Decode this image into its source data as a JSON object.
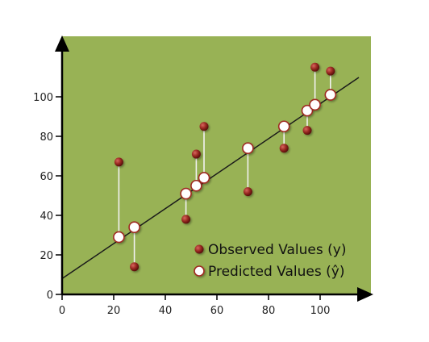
{
  "chart_data": {
    "type": "scatter",
    "title": "",
    "xlabel": "",
    "ylabel": "",
    "xlim": [
      0,
      118
    ],
    "ylim": [
      0,
      128
    ],
    "x_ticks": [
      0,
      20,
      40,
      60,
      80,
      100
    ],
    "y_ticks": [
      0,
      20,
      40,
      60,
      80,
      100
    ],
    "x_tick_labels": [
      "0",
      "20",
      "40",
      "60",
      "80",
      "100"
    ],
    "y_tick_labels": [
      "0",
      "20",
      "40",
      "60",
      "80",
      "100"
    ],
    "grid": false,
    "legend_position": "bottom-right",
    "regression_line": {
      "intercept": 8,
      "slope": 0.885,
      "x_start": 0,
      "x_end": 115
    },
    "series": [
      {
        "name": "Observed Values (y)",
        "points": [
          {
            "x": 22,
            "y": 67
          },
          {
            "x": 28,
            "y": 14
          },
          {
            "x": 48,
            "y": 38
          },
          {
            "x": 52,
            "y": 71
          },
          {
            "x": 55,
            "y": 85
          },
          {
            "x": 72,
            "y": 52
          },
          {
            "x": 86,
            "y": 74
          },
          {
            "x": 95,
            "y": 83
          },
          {
            "x": 98,
            "y": 115
          },
          {
            "x": 104,
            "y": 113
          }
        ]
      },
      {
        "name": "Predicted Values (ŷ)",
        "points": [
          {
            "x": 22,
            "y": 29
          },
          {
            "x": 28,
            "y": 34
          },
          {
            "x": 48,
            "y": 51
          },
          {
            "x": 52,
            "y": 55
          },
          {
            "x": 55,
            "y": 59
          },
          {
            "x": 72,
            "y": 74
          },
          {
            "x": 86,
            "y": 85
          },
          {
            "x": 95,
            "y": 93
          },
          {
            "x": 98,
            "y": 96
          },
          {
            "x": 104,
            "y": 101
          }
        ]
      }
    ]
  },
  "colors": {
    "plot_background": "#98b255",
    "observed_fill": "#8b1e1a",
    "predicted_fill": "#ffffff",
    "predicted_stroke": "#a02a22",
    "regression_line": "#1a1a1a",
    "residual_line": "#f2f2f2",
    "axis": "#000000"
  }
}
